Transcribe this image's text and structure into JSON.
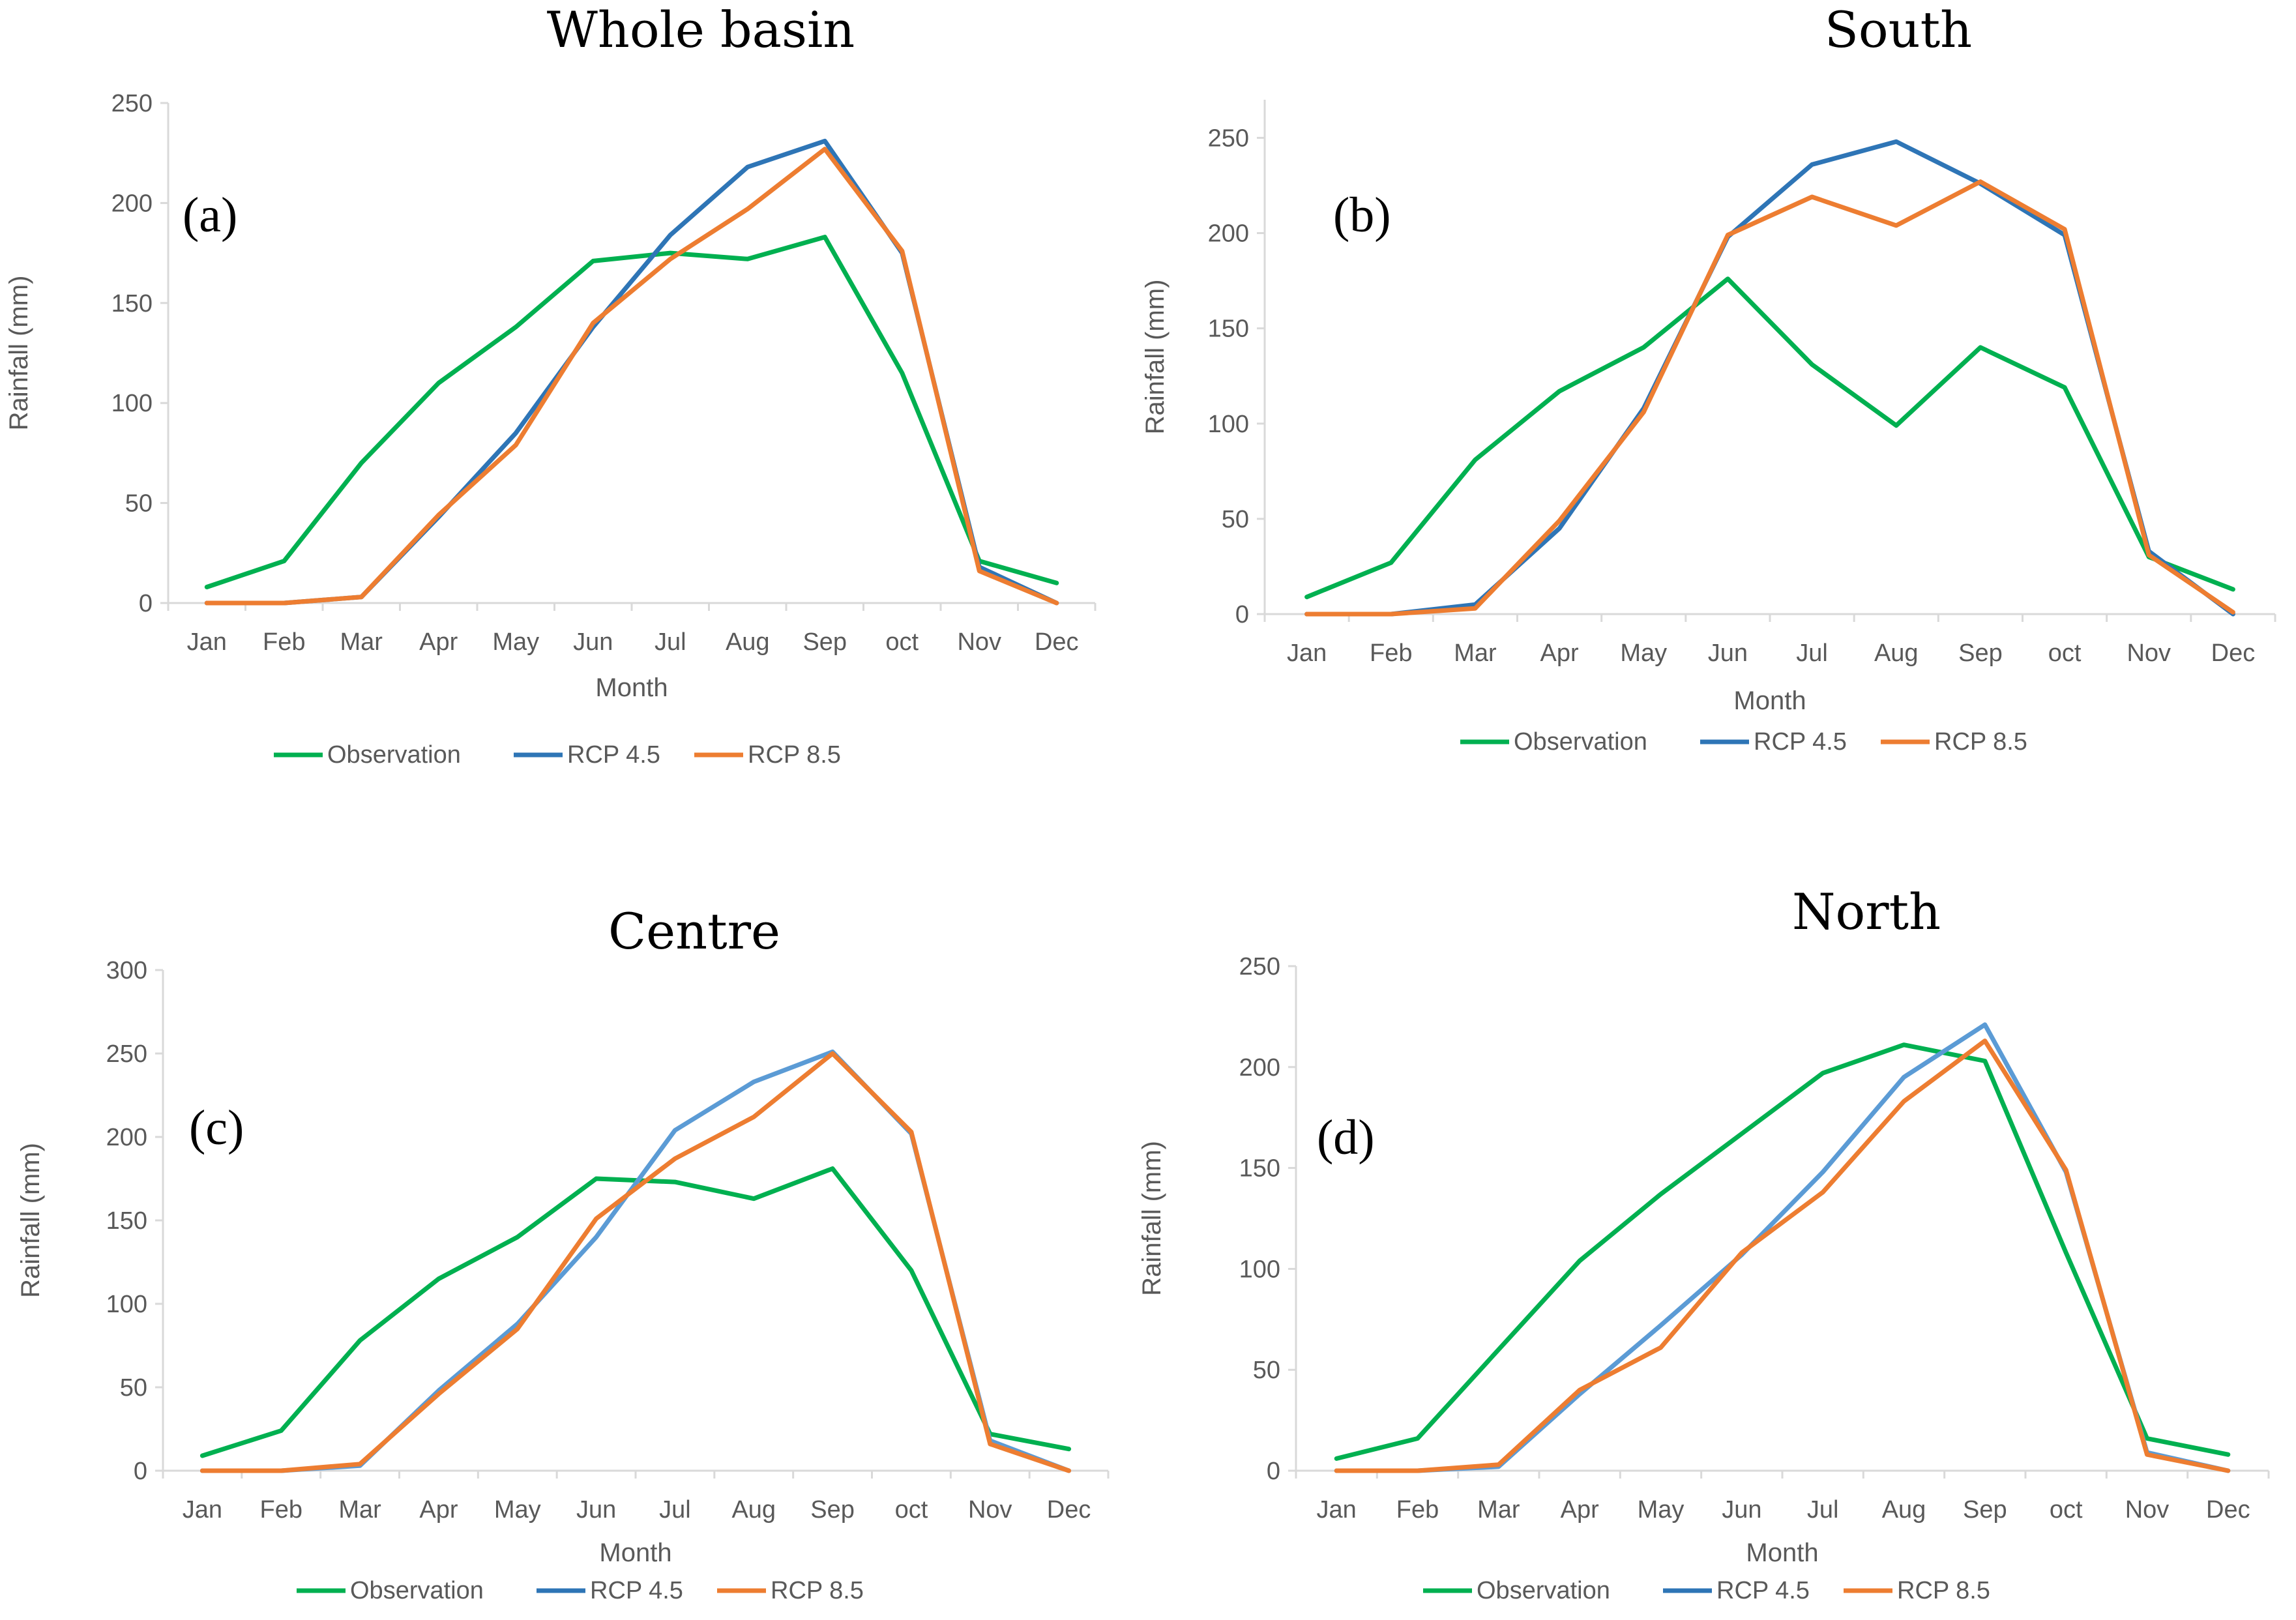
{
  "chart_data": [
    {
      "type": "line",
      "title": "Whole basin",
      "panel_label": "(a)",
      "xlabel": "Month",
      "ylabel": "Rainfall (mm)",
      "ylim": [
        0,
        250
      ],
      "yticks": [
        0,
        50,
        100,
        150,
        200,
        250
      ],
      "categories": [
        "Jan",
        "Feb",
        "Mar",
        "Apr",
        "May",
        "Jun",
        "Jul",
        "Aug",
        "Sep",
        "oct",
        "Nov",
        "Dec"
      ],
      "legend_position": "bottom",
      "series": [
        {
          "name": "Observation",
          "color": "#00b050",
          "values": [
            8,
            21,
            70,
            110,
            138,
            171,
            175,
            172,
            183,
            115,
            21,
            10
          ]
        },
        {
          "name": "RCP 4.5",
          "color": "#2e75b6",
          "values": [
            0,
            0,
            3,
            43,
            85,
            138,
            184,
            218,
            231,
            175,
            18,
            0
          ]
        },
        {
          "name": "RCP 8.5",
          "color": "#ed7d31",
          "values": [
            0,
            0,
            3,
            44,
            79,
            140,
            172,
            197,
            227,
            176,
            16,
            0
          ]
        }
      ]
    },
    {
      "type": "line",
      "title": "South",
      "panel_label": "(b)",
      "xlabel": "Month",
      "ylabel": "Rainfall (mm)",
      "ylim": [
        0,
        270
      ],
      "yticks": [
        0,
        50,
        100,
        150,
        200,
        250
      ],
      "categories": [
        "Jan",
        "Feb",
        "Mar",
        "Apr",
        "May",
        "Jun",
        "Jul",
        "Aug",
        "Sep",
        "oct",
        "Nov",
        "Dec"
      ],
      "legend_position": "bottom",
      "series": [
        {
          "name": "Observation",
          "color": "#00b050",
          "values": [
            9,
            27,
            81,
            117,
            140,
            176,
            131,
            99,
            140,
            119,
            30,
            13
          ]
        },
        {
          "name": "RCP 4.5",
          "color": "#2e75b6",
          "values": [
            0,
            0,
            5,
            45,
            108,
            198,
            236,
            248,
            226,
            199,
            33,
            0
          ]
        },
        {
          "name": "RCP 8.5",
          "color": "#ed7d31",
          "values": [
            0,
            0,
            3,
            49,
            106,
            199,
            219,
            204,
            227,
            202,
            31,
            1
          ]
        }
      ]
    },
    {
      "type": "line",
      "title": "Centre",
      "panel_label": "(c)",
      "xlabel": "Month",
      "ylabel": "Rainfall (mm)",
      "ylim": [
        0,
        300
      ],
      "yticks": [
        0,
        50,
        100,
        150,
        200,
        250,
        300
      ],
      "categories": [
        "Jan",
        "Feb",
        "Mar",
        "Apr",
        "May",
        "Jun",
        "Jul",
        "Aug",
        "Sep",
        "oct",
        "Nov",
        "Dec"
      ],
      "legend_position": "bottom",
      "series": [
        {
          "name": "Observation",
          "color": "#00b050",
          "values": [
            9,
            24,
            78,
            115,
            140,
            175,
            173,
            163,
            181,
            120,
            22,
            13
          ]
        },
        {
          "name": "RCP 4.5",
          "color": "#5b9bd5",
          "values": [
            0,
            0,
            3,
            48,
            88,
            140,
            204,
            233,
            251,
            202,
            18,
            0
          ]
        },
        {
          "name": "RCP 8.5",
          "color": "#ed7d31",
          "values": [
            0,
            0,
            4,
            46,
            85,
            151,
            187,
            212,
            250,
            203,
            16,
            0
          ]
        }
      ]
    },
    {
      "type": "line",
      "title": "North",
      "panel_label": "(d)",
      "xlabel": "Month",
      "ylabel": "Rainfall (mm)",
      "ylim": [
        0,
        250
      ],
      "yticks": [
        0,
        50,
        100,
        150,
        200,
        250
      ],
      "categories": [
        "Jan",
        "Feb",
        "Mar",
        "Apr",
        "May",
        "Jun",
        "Jul",
        "Aug",
        "Sep",
        "oct",
        "Nov",
        "Dec"
      ],
      "legend_position": "bottom",
      "series": [
        {
          "name": "Observation",
          "color": "#00b050",
          "values": [
            6,
            16,
            60,
            104,
            137,
            167,
            197,
            211,
            203,
            108,
            16,
            8
          ]
        },
        {
          "name": "RCP 4.5",
          "color": "#5b9bd5",
          "values": [
            0,
            0,
            2,
            38,
            72,
            107,
            148,
            195,
            221,
            148,
            9,
            0
          ]
        },
        {
          "name": "RCP 8.5",
          "color": "#ed7d31",
          "values": [
            0,
            0,
            3,
            40,
            61,
            108,
            138,
            183,
            213,
            149,
            8,
            0
          ]
        }
      ]
    }
  ],
  "legend_line_colors": [
    "#00b050",
    "#2e75b6",
    "#ed7d31"
  ]
}
